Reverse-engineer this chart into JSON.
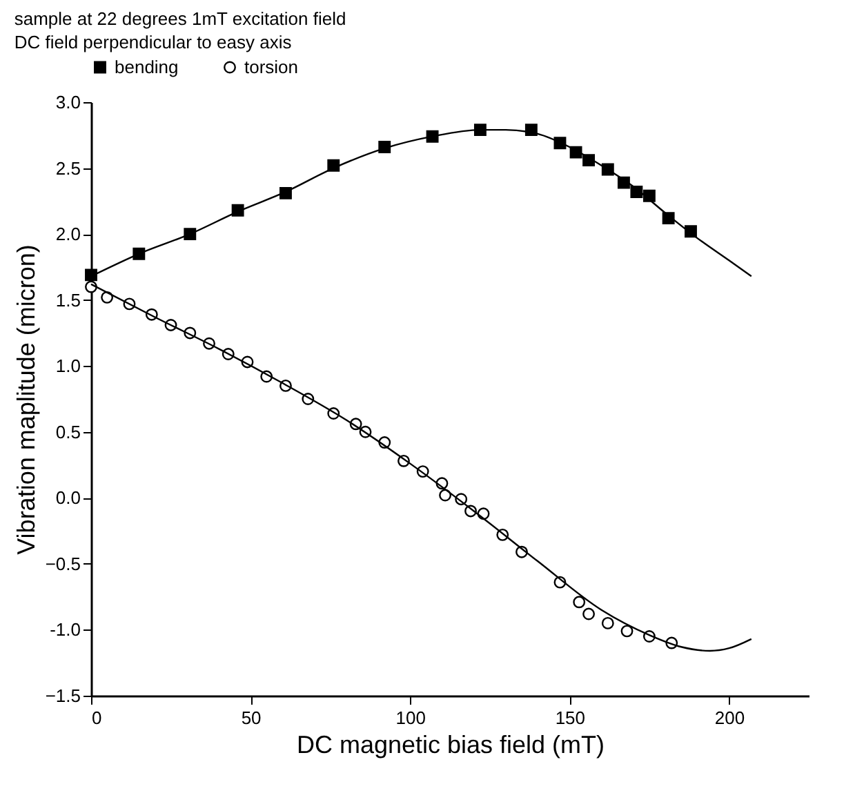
{
  "chart_data": {
    "type": "scatter",
    "title": "sample at 22 degrees 1mT excitation field",
    "subtitle": "DC field perpendicular to easy axis",
    "xlabel": "DC magnetic bias field (mT)",
    "ylabel": "Vibration maplitude (micron)",
    "xlim": [
      0,
      225
    ],
    "xticks": [
      0,
      50,
      100,
      150,
      200
    ],
    "ylim": [
      -1.5,
      3.0
    ],
    "yticks": [
      -1.5,
      {
        "value": -1,
        "label": "-1.0"
      },
      -0.5,
      {
        "value": 0,
        "label": "0.0"
      },
      0.5,
      {
        "value": 1,
        "label": "1.0"
      },
      1.5,
      {
        "value": 2,
        "label": "2.0"
      },
      2.5,
      {
        "value": 3,
        "label": "3.0"
      }
    ],
    "legend": "top",
    "grid": false,
    "series": [
      {
        "name": "bending",
        "marker": "square",
        "color": "#000000",
        "x": [
          0,
          15,
          31,
          46,
          61,
          76,
          92,
          107,
          122,
          138,
          147,
          152,
          156,
          162,
          167,
          171,
          175,
          181,
          188
        ],
        "values": [
          1.69,
          1.85,
          2.0,
          2.18,
          2.31,
          2.52,
          2.66,
          2.74,
          2.79,
          2.79,
          2.69,
          2.62,
          2.56,
          2.49,
          2.39,
          2.32,
          2.29,
          2.12,
          2.02
        ]
      },
      {
        "name": "torsion",
        "marker": "circle",
        "color": "#000000",
        "x": [
          0,
          5,
          12,
          19,
          25,
          31,
          37,
          43,
          49,
          55,
          61,
          68,
          76,
          83,
          86,
          92,
          98,
          104,
          110,
          111,
          116,
          119,
          123,
          129,
          135,
          147,
          153,
          156,
          162,
          168,
          175,
          182
        ],
        "values": [
          1.6,
          1.52,
          1.47,
          1.39,
          1.31,
          1.25,
          1.17,
          1.09,
          1.03,
          0.92,
          0.85,
          0.75,
          0.64,
          0.56,
          0.5,
          0.42,
          0.28,
          0.2,
          0.11,
          0.02,
          -0.01,
          -0.1,
          -0.12,
          -0.28,
          -0.41,
          -0.64,
          -0.79,
          -0.88,
          -0.95,
          -1.01,
          -1.05,
          -1.1
        ]
      },
      {
        "type": "line",
        "color": "#000000",
        "x": [
          0,
          15,
          31,
          46,
          61,
          76,
          92,
          107,
          122,
          130,
          140,
          150,
          160,
          170,
          180,
          190,
          200,
          207
        ],
        "values": [
          1.68,
          1.85,
          2.0,
          2.17,
          2.32,
          2.5,
          2.65,
          2.74,
          2.79,
          2.79,
          2.76,
          2.66,
          2.52,
          2.36,
          2.16,
          1.97,
          1.8,
          1.68
        ]
      },
      {
        "type": "line",
        "color": "#000000",
        "x": [
          0,
          20,
          40,
          60,
          80,
          100,
          120,
          140,
          160,
          175,
          185,
          194,
          200,
          207
        ],
        "values": [
          1.62,
          1.37,
          1.13,
          0.87,
          0.59,
          0.26,
          -0.1,
          -0.48,
          -0.85,
          -1.04,
          -1.13,
          -1.16,
          -1.14,
          -1.07
        ]
      }
    ]
  }
}
